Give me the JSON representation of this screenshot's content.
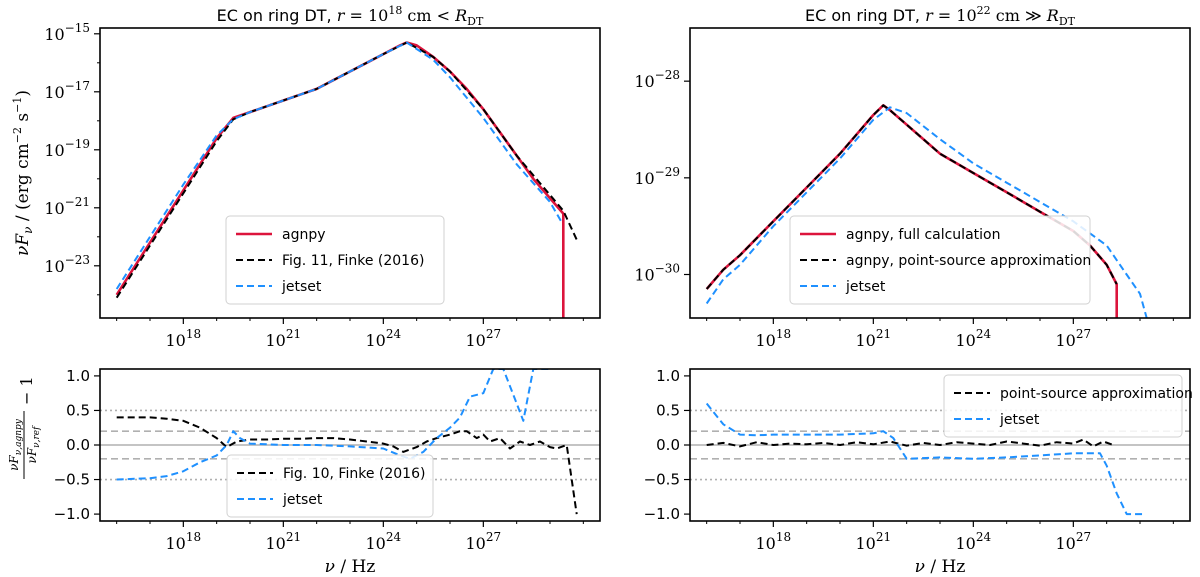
{
  "figure": {
    "x_axis_label": "ν / Hz",
    "ratio_ylabel": "νF_ν,agnpy / νF_ν,ref − 1"
  },
  "chart_data": [
    {
      "id": "top_left",
      "type": "line",
      "title_prefix": "EC on ring DT,",
      "title_math": "r = 10^18 cm < R_DT",
      "xscale": "log",
      "yscale": "log",
      "xlim_log": [
        15.5,
        30.5
      ],
      "ylim_log": [
        -24.8,
        -14.8
      ],
      "xticks": [
        "10^18",
        "10^21",
        "10^24",
        "10^27"
      ],
      "xtick_exps": [
        18,
        21,
        24,
        27
      ],
      "yticks": [
        "10^-15",
        "10^-17",
        "10^-19",
        "10^-21",
        "10^-23"
      ],
      "ytick_exps": [
        -15,
        -17,
        -19,
        -21,
        -23
      ],
      "ylabel": "νF_ν / (erg cm^-2 s^-1)",
      "legend": {
        "position": "lower-center",
        "entries": [
          "agnpy",
          "Fig. 11, Finke (2016)",
          "jetset"
        ]
      },
      "series": [
        {
          "name": "agnpy",
          "color": "#dc143c",
          "style": "solid",
          "x": [
            16.0,
            16.5,
            17.0,
            17.5,
            18.0,
            18.5,
            19.0,
            19.5,
            20.0,
            20.5,
            21.0,
            21.5,
            22.0,
            22.5,
            23.0,
            23.5,
            24.0,
            24.5,
            24.7,
            25.0,
            25.5,
            26.0,
            26.5,
            27.0,
            27.5,
            28.0,
            28.5,
            29.4,
            29.4
          ],
          "y": [
            -24.0,
            -23.1,
            -22.2,
            -21.3,
            -20.4,
            -19.5,
            -18.6,
            -17.9,
            -17.7,
            -17.5,
            -17.3,
            -17.1,
            -16.9,
            -16.6,
            -16.3,
            -16.0,
            -15.7,
            -15.4,
            -15.3,
            -15.4,
            -15.8,
            -16.3,
            -16.9,
            -17.6,
            -18.4,
            -19.2,
            -20.0,
            -21.2,
            -24.8
          ]
        },
        {
          "name": "Fig. 11, Finke (2016)",
          "color": "#000000",
          "style": "dashed",
          "x": [
            16.0,
            17.0,
            18.0,
            19.0,
            19.5,
            20.0,
            21.0,
            22.0,
            23.0,
            24.0,
            24.7,
            25.5,
            26.0,
            27.0,
            28.0,
            29.4,
            29.8
          ],
          "y": [
            -24.1,
            -22.3,
            -20.5,
            -18.7,
            -17.95,
            -17.7,
            -17.3,
            -16.9,
            -16.3,
            -15.7,
            -15.3,
            -15.8,
            -16.3,
            -17.6,
            -19.2,
            -21.1,
            -22.1
          ]
        },
        {
          "name": "jetset",
          "color": "#1e90ff",
          "style": "dashed",
          "x": [
            16.0,
            17.0,
            18.0,
            19.0,
            19.5,
            20.0,
            21.0,
            22.0,
            23.0,
            24.0,
            24.7,
            25.5,
            26.0,
            27.0,
            28.0,
            29.0,
            29.35
          ],
          "y": [
            -23.8,
            -22.0,
            -20.2,
            -18.5,
            -17.95,
            -17.7,
            -17.3,
            -16.9,
            -16.3,
            -15.7,
            -15.3,
            -15.9,
            -16.5,
            -17.9,
            -19.5,
            -20.8,
            -21.5
          ]
        }
      ]
    },
    {
      "id": "top_right",
      "type": "line",
      "title_prefix": "EC on ring DT,",
      "title_math": "r = 10^22 cm ≫ R_DT",
      "xscale": "log",
      "yscale": "log",
      "xlim_log": [
        15.5,
        30.5
      ],
      "ylim_log": [
        -30.45,
        -27.45
      ],
      "xticks": [
        "10^18",
        "10^21",
        "10^24",
        "10^27"
      ],
      "xtick_exps": [
        18,
        21,
        24,
        27
      ],
      "yticks": [
        "10^-28",
        "10^-29",
        "10^-30"
      ],
      "ytick_exps": [
        -28,
        -29,
        -30
      ],
      "legend": {
        "position": "lower-right",
        "entries": [
          "agnpy, full calculation",
          "agnpy, point-source approximation",
          "jetset"
        ]
      },
      "series": [
        {
          "name": "agnpy, full calculation",
          "color": "#dc143c",
          "style": "solid",
          "x": [
            16.0,
            16.5,
            17.0,
            18.0,
            19.0,
            20.0,
            20.5,
            21.0,
            21.3,
            21.5,
            22.0,
            23.0,
            24.0,
            25.0,
            26.0,
            27.0,
            27.5,
            28.0,
            28.3,
            28.3
          ],
          "y": [
            -30.15,
            -29.95,
            -29.8,
            -29.45,
            -29.1,
            -28.75,
            -28.55,
            -28.35,
            -28.25,
            -28.3,
            -28.45,
            -28.75,
            -28.95,
            -29.15,
            -29.35,
            -29.55,
            -29.7,
            -29.9,
            -30.1,
            -30.45
          ]
        },
        {
          "name": "agnpy, point-source approximation",
          "color": "#000000",
          "style": "dashed",
          "x": [
            16.0,
            16.5,
            17.0,
            18.0,
            19.0,
            20.0,
            20.5,
            21.0,
            21.3,
            21.5,
            22.0,
            23.0,
            24.0,
            25.0,
            26.0,
            27.0,
            27.5,
            28.0,
            28.3
          ],
          "y": [
            -30.15,
            -29.95,
            -29.8,
            -29.45,
            -29.1,
            -28.75,
            -28.55,
            -28.35,
            -28.25,
            -28.3,
            -28.45,
            -28.75,
            -28.95,
            -29.15,
            -29.35,
            -29.55,
            -29.7,
            -29.9,
            -30.1
          ]
        },
        {
          "name": "jetset",
          "color": "#1e90ff",
          "style": "dashed",
          "x": [
            16.0,
            16.5,
            17.0,
            18.0,
            19.0,
            20.0,
            21.0,
            21.5,
            22.0,
            23.0,
            24.0,
            25.0,
            26.0,
            27.0,
            28.0,
            28.5,
            29.0,
            29.2
          ],
          "y": [
            -30.3,
            -30.05,
            -29.9,
            -29.5,
            -29.15,
            -28.8,
            -28.4,
            -28.27,
            -28.33,
            -28.6,
            -28.85,
            -29.05,
            -29.25,
            -29.45,
            -29.7,
            -29.95,
            -30.2,
            -30.45
          ]
        }
      ]
    },
    {
      "id": "bottom_left",
      "type": "line",
      "xscale": "log",
      "xlim_log": [
        15.5,
        30.5
      ],
      "ylim": [
        -1.1,
        1.1
      ],
      "xticks": [
        "10^18",
        "10^21",
        "10^24",
        "10^27"
      ],
      "xtick_exps": [
        18,
        21,
        24,
        27
      ],
      "yticks": [
        "1.0",
        "0.5",
        "0.0",
        "−0.5",
        "−1.0"
      ],
      "ytick_vals": [
        1.0,
        0.5,
        0.0,
        -0.5,
        -1.0
      ],
      "reference_lines": {
        "solid": [
          0.0
        ],
        "dashed": [
          0.2,
          -0.2
        ],
        "dotted": [
          0.5,
          -0.5
        ]
      },
      "legend": {
        "position": "lower-center",
        "entries": [
          "Fig. 10, Finke (2016)",
          "jetset"
        ]
      },
      "series": [
        {
          "name": "Fig. 10, Finke (2016)",
          "color": "#000000",
          "style": "dashed",
          "x": [
            16.0,
            16.5,
            17.0,
            17.5,
            18.0,
            18.5,
            19.0,
            19.3,
            19.6,
            20.0,
            20.5,
            21.0,
            21.5,
            22.0,
            22.5,
            23.0,
            23.5,
            24.0,
            24.3,
            24.6,
            25.0,
            25.3,
            25.6,
            26.0,
            26.3,
            26.5,
            26.8,
            27.0,
            27.2,
            27.5,
            27.8,
            28.1,
            28.4,
            28.7,
            29.0,
            29.2,
            29.5,
            29.8
          ],
          "y": [
            0.4,
            0.4,
            0.4,
            0.38,
            0.35,
            0.25,
            0.1,
            -0.03,
            0.05,
            0.08,
            0.08,
            0.09,
            0.09,
            0.1,
            0.1,
            0.08,
            0.05,
            0.02,
            -0.02,
            -0.1,
            -0.03,
            0.05,
            0.1,
            0.15,
            0.2,
            0.2,
            0.1,
            0.15,
            0.05,
            0.1,
            -0.05,
            0.05,
            0.0,
            0.05,
            -0.03,
            -0.05,
            0.0,
            -1.0
          ]
        },
        {
          "name": "jetset",
          "color": "#1e90ff",
          "style": "dashed",
          "x": [
            16.0,
            17.0,
            17.5,
            18.0,
            18.5,
            19.0,
            19.3,
            19.5,
            19.7,
            20.0,
            21.0,
            22.0,
            23.0,
            24.0,
            24.5,
            24.8,
            25.2,
            25.6,
            26.0,
            26.3,
            26.6,
            27.0,
            27.3,
            27.6,
            28.0,
            28.2,
            28.5,
            28.8,
            29.0
          ],
          "y": [
            -0.5,
            -0.48,
            -0.45,
            -0.38,
            -0.25,
            -0.15,
            0.0,
            0.2,
            0.1,
            0.02,
            0.0,
            0.0,
            -0.02,
            -0.05,
            -0.15,
            -0.2,
            -0.1,
            0.1,
            0.25,
            0.4,
            0.7,
            0.75,
            1.1,
            1.1,
            0.6,
            0.35,
            1.1,
            1.1,
            1.1
          ]
        }
      ]
    },
    {
      "id": "bottom_right",
      "type": "line",
      "xscale": "log",
      "xlim_log": [
        15.5,
        30.5
      ],
      "ylim": [
        -1.1,
        1.1
      ],
      "xticks": [
        "10^18",
        "10^21",
        "10^24",
        "10^27"
      ],
      "xtick_exps": [
        18,
        21,
        24,
        27
      ],
      "yticks": [
        "1.0",
        "0.5",
        "0.0",
        "−0.5",
        "−1.0"
      ],
      "ytick_vals": [
        1.0,
        0.5,
        0.0,
        -0.5,
        -1.0
      ],
      "reference_lines": {
        "solid": [
          0.0
        ],
        "dashed": [
          0.2,
          -0.2
        ],
        "dotted": [
          0.5,
          -0.5
        ]
      },
      "legend": {
        "position": "upper-right",
        "entries": [
          "point-source approximation",
          "jetset"
        ]
      },
      "series": [
        {
          "name": "point-source approximation",
          "color": "#000000",
          "style": "dashed",
          "x": [
            16.0,
            16.5,
            17.0,
            17.5,
            18.0,
            18.5,
            19.0,
            19.5,
            20.0,
            20.5,
            21.0,
            21.5,
            22.0,
            22.5,
            23.0,
            23.5,
            24.0,
            24.5,
            25.0,
            25.5,
            26.0,
            26.5,
            27.0,
            27.3,
            27.6,
            27.9,
            28.2
          ],
          "y": [
            0.0,
            0.03,
            -0.02,
            0.04,
            0.0,
            0.02,
            0.01,
            0.03,
            0.0,
            0.04,
            0.01,
            0.05,
            -0.01,
            0.03,
            0.0,
            0.04,
            0.02,
            0.0,
            0.05,
            0.02,
            -0.01,
            0.04,
            0.02,
            0.08,
            -0.02,
            0.05,
            0.0
          ]
        },
        {
          "name": "jetset",
          "color": "#1e90ff",
          "style": "dashed",
          "x": [
            16.0,
            16.5,
            17.0,
            17.5,
            18.0,
            19.0,
            20.0,
            21.0,
            21.3,
            21.6,
            22.0,
            23.0,
            24.0,
            25.0,
            26.0,
            27.0,
            27.8,
            28.0,
            28.3,
            28.6,
            28.9,
            29.1
          ],
          "y": [
            0.6,
            0.3,
            0.15,
            0.14,
            0.15,
            0.15,
            0.15,
            0.17,
            0.2,
            0.1,
            -0.2,
            -0.18,
            -0.2,
            -0.18,
            -0.15,
            -0.12,
            -0.12,
            -0.3,
            -0.7,
            -1.0,
            -1.0,
            -1.0
          ]
        }
      ]
    }
  ]
}
